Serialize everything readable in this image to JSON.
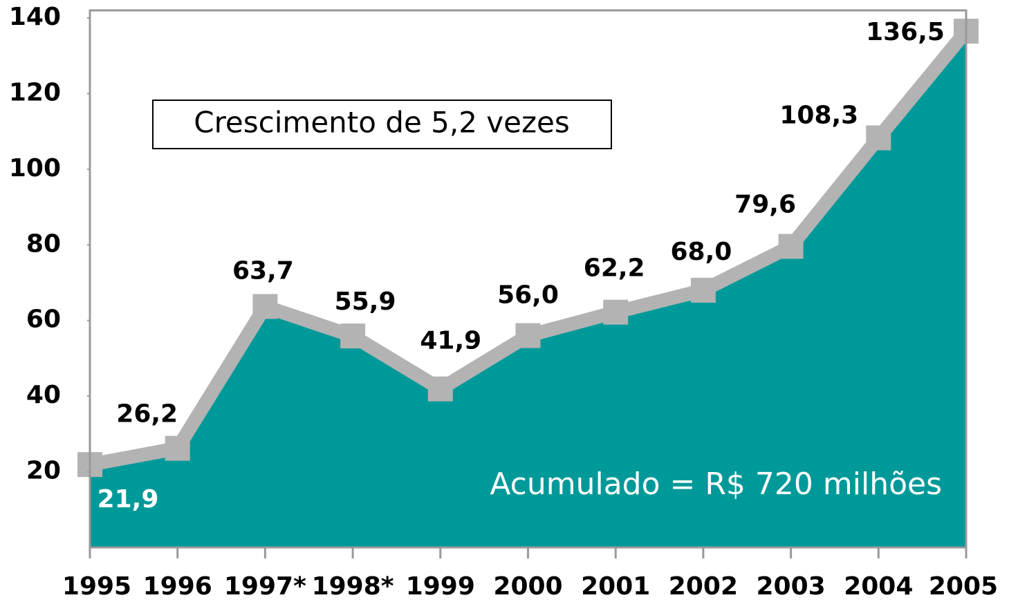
{
  "chart_data": {
    "type": "area",
    "categories": [
      "1995",
      "1996",
      "1997*",
      "1998*",
      "1999",
      "2000",
      "2001",
      "2002",
      "2003",
      "2004",
      "2005"
    ],
    "series": [
      {
        "color": "#009999",
        "line_color": "#b3b3b3",
        "values": [
          21.9,
          26.2,
          63.7,
          55.9,
          41.9,
          56.0,
          62.2,
          68.0,
          79.6,
          108.3,
          136.5
        ],
        "value_labels": [
          "21,9",
          "26,2",
          "63,7",
          "55,9",
          "41,9",
          "56,0",
          "62,2",
          "68,0",
          "79,6",
          "108,3",
          "136,5"
        ]
      }
    ],
    "ylim": [
      0,
      142
    ],
    "yticks": [
      20,
      40,
      60,
      80,
      100,
      120,
      140
    ],
    "annotations": [
      "Crescimento de 5,2 vezes",
      "Acumulado = R$ 720 milhões"
    ]
  }
}
